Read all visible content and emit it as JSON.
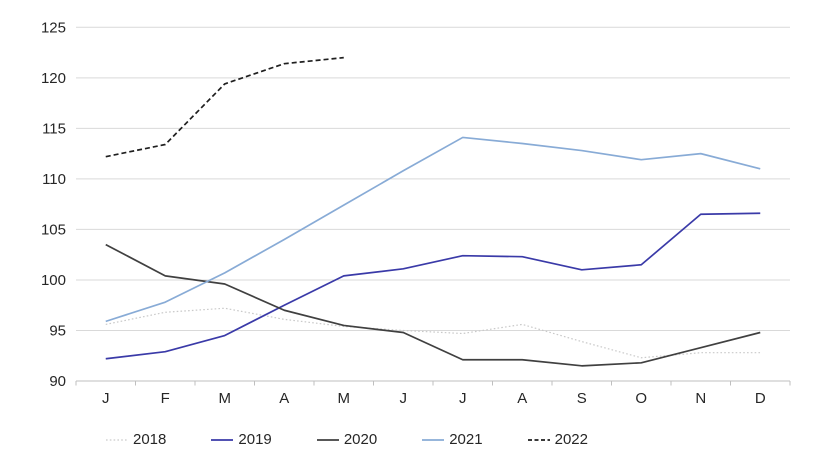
{
  "chart_data": {
    "type": "line",
    "title": "",
    "xlabel": "",
    "ylabel": "",
    "categories": [
      "J",
      "F",
      "M",
      "A",
      "M",
      "J",
      "J",
      "A",
      "S",
      "O",
      "N",
      "D"
    ],
    "y_axis": {
      "min": 90,
      "max": 125,
      "step": 5,
      "tick_labels": [
        "90",
        "95",
        "100",
        "105",
        "110",
        "115",
        "120",
        "125"
      ]
    },
    "grid": true,
    "legend_position": "bottom",
    "series": [
      {
        "name": "2018",
        "color": "#c9c9c9",
        "style": "dotted",
        "values": [
          95.6,
          96.8,
          97.2,
          96.1,
          95.4,
          95.0,
          94.7,
          95.6,
          93.9,
          92.3,
          92.8,
          92.8
        ]
      },
      {
        "name": "2019",
        "color": "#3a3aa8",
        "style": "solid",
        "values": [
          92.2,
          92.9,
          94.5,
          97.5,
          100.4,
          101.1,
          102.4,
          102.3,
          101.0,
          101.5,
          106.5,
          106.6
        ]
      },
      {
        "name": "2020",
        "color": "#404040",
        "style": "solid",
        "values": [
          103.5,
          100.4,
          99.6,
          97.0,
          95.5,
          94.8,
          92.1,
          92.1,
          91.5,
          91.8,
          93.3,
          94.8
        ]
      },
      {
        "name": "2021",
        "color": "#88abd6",
        "style": "solid",
        "values": [
          95.9,
          97.8,
          100.7,
          104.0,
          107.4,
          110.8,
          114.1,
          113.5,
          112.8,
          111.9,
          112.5,
          111.0
        ]
      },
      {
        "name": "2022",
        "color": "#1f1f1f",
        "style": "dashed",
        "values": [
          112.2,
          113.4,
          119.4,
          121.4,
          122.0
        ]
      }
    ],
    "axis_color": "#bfbfbf",
    "gridline_color": "#d9d9d9"
  }
}
